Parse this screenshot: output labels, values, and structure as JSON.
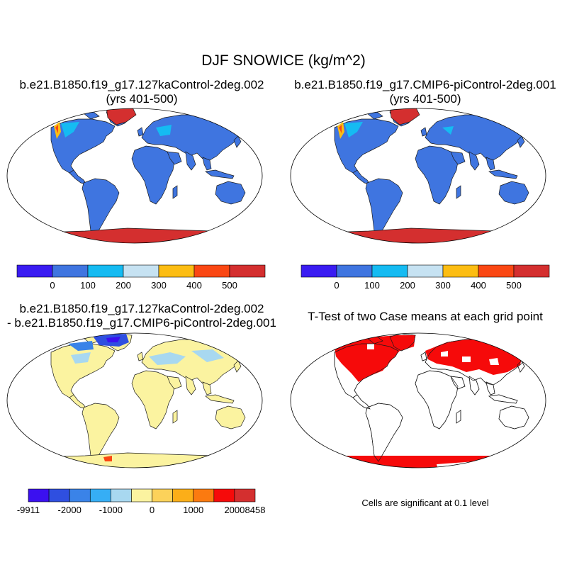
{
  "figure": {
    "title": "DJF SNOWICE (kg/m^2)",
    "panel1": {
      "line1": "b.e21.B1850.f19_g17.127kaControl-2deg.002",
      "line2": "(yrs 401-500)"
    },
    "panel2": {
      "line1": "b.e21.B1850.f19_g17.CMIP6-piControl-2deg.001",
      "line2": "(yrs 401-500)"
    },
    "panel3": {
      "line1": "b.e21.B1850.f19_g17.127kaControl-2deg.002",
      "line2": "- b.e21.B1850.f19_g17.CMIP6-piControl-2deg.001"
    },
    "panel4": {
      "line1": "T-Test of two Case means at each grid point"
    },
    "significance_note": "Cells are significant at 0.1 level"
  },
  "colorbar_top": {
    "colors": [
      "#3a1cf2",
      "#3f75e0",
      "#15bbf2",
      "#c6e2f2",
      "#fcbd13",
      "#fa4713",
      "#d42f2f"
    ],
    "labels": [
      "0",
      "100",
      "200",
      "300",
      "400",
      "500"
    ]
  },
  "colorbar_diff": {
    "colors": [
      "#3b10f0",
      "#2f4fe0",
      "#3a83e8",
      "#36aef5",
      "#a8d8f0",
      "#fbf3a0",
      "#fcd25a",
      "#fcae18",
      "#fb7a10",
      "#f60a0a",
      "#d42f2f"
    ],
    "labels": [
      "-9911",
      "-2000",
      "-1000",
      "0",
      "1000",
      "2000",
      "8458"
    ]
  },
  "colors": {
    "land_mean": "#3f75e0",
    "ice": "#d42f2f",
    "diff_land": "#fbf3a0",
    "diff_neg": "#a8d8f0",
    "significant": "#f60a0a"
  }
}
